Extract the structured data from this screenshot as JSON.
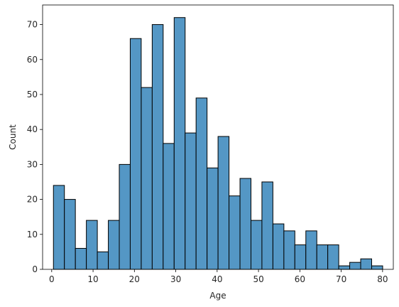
{
  "chart_data": {
    "type": "bar",
    "xlabel": "Age",
    "ylabel": "Count",
    "xlim": [
      -2.2,
      82.6
    ],
    "ylim": [
      0,
      75.6
    ],
    "grid": false,
    "bar_color": "#5497c5",
    "edge_color": "#000000",
    "bin_width": 2.653,
    "bins": [
      {
        "x0": 0.42,
        "count": 24
      },
      {
        "x0": 3.07,
        "count": 20
      },
      {
        "x0": 5.73,
        "count": 6
      },
      {
        "x0": 8.38,
        "count": 14
      },
      {
        "x0": 11.03,
        "count": 5
      },
      {
        "x0": 13.69,
        "count": 14
      },
      {
        "x0": 16.34,
        "count": 30
      },
      {
        "x0": 18.99,
        "count": 66
      },
      {
        "x0": 21.65,
        "count": 52
      },
      {
        "x0": 24.3,
        "count": 70
      },
      {
        "x0": 26.95,
        "count": 36
      },
      {
        "x0": 29.61,
        "count": 72
      },
      {
        "x0": 32.26,
        "count": 39
      },
      {
        "x0": 34.91,
        "count": 49
      },
      {
        "x0": 37.57,
        "count": 29
      },
      {
        "x0": 40.22,
        "count": 38
      },
      {
        "x0": 42.87,
        "count": 21
      },
      {
        "x0": 45.53,
        "count": 26
      },
      {
        "x0": 48.18,
        "count": 14
      },
      {
        "x0": 50.83,
        "count": 25
      },
      {
        "x0": 53.49,
        "count": 13
      },
      {
        "x0": 56.14,
        "count": 11
      },
      {
        "x0": 58.79,
        "count": 7
      },
      {
        "x0": 61.45,
        "count": 11
      },
      {
        "x0": 64.1,
        "count": 7
      },
      {
        "x0": 66.75,
        "count": 7
      },
      {
        "x0": 69.41,
        "count": 1
      },
      {
        "x0": 72.06,
        "count": 2
      },
      {
        "x0": 74.71,
        "count": 3
      },
      {
        "x0": 77.37,
        "count": 1
      }
    ],
    "x_ticks": [
      "0",
      "10",
      "20",
      "30",
      "40",
      "50",
      "60",
      "70",
      "80"
    ],
    "y_ticks": [
      "0",
      "10",
      "20",
      "30",
      "40",
      "50",
      "60",
      "70"
    ]
  }
}
